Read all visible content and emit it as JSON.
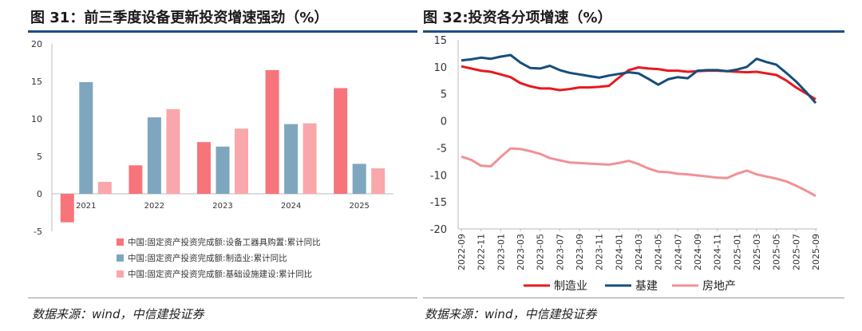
{
  "left": {
    "title": "图 31：前三季度设备更新投资增速强劲（%）",
    "source": "数据来源：wind，中信建投证券"
  },
  "right": {
    "title": "图 32:投资各分项增速（%）",
    "source": "数据来源：wind，中信建投证券"
  },
  "colors": {
    "accent": "#1c4f80",
    "bar1": "#f7747b",
    "bar2": "#7ea6bf",
    "bar3": "#f9a7ab",
    "line_mfg": "#e8191e",
    "line_infra": "#174e7a",
    "line_re": "#f19195"
  },
  "chart_data": [
    {
      "type": "bar",
      "categories": [
        "2021",
        "2022",
        "2023",
        "2024",
        "2025"
      ],
      "series": [
        {
          "name": "中国:固定资产投资完成额:设备工器具购置:累计同比",
          "values": [
            -3.8,
            3.8,
            6.9,
            16.5,
            14.1
          ]
        },
        {
          "name": "中国:固定资产投资完成额:制造业:累计同比",
          "values": [
            14.9,
            10.2,
            6.3,
            9.3,
            4.0
          ]
        },
        {
          "name": "中国:固定资产投资完成额:基础设施建设:累计同比",
          "values": [
            1.6,
            11.3,
            8.7,
            9.4,
            3.4
          ]
        }
      ],
      "ylim": [
        -5,
        20
      ],
      "yticks": [
        "-5",
        "0",
        "5",
        "10",
        "15",
        "20"
      ],
      "title": "图 31：前三季度设备更新投资增速强劲（%）"
    },
    {
      "type": "line",
      "x": [
        "2022-09",
        "2022-10",
        "2022-11",
        "2022-12",
        "2023-01",
        "2023-02",
        "2023-03",
        "2023-04",
        "2023-05",
        "2023-06",
        "2023-07",
        "2023-08",
        "2023-09",
        "2023-10",
        "2023-11",
        "2023-12",
        "2024-01",
        "2024-02",
        "2024-03",
        "2024-04",
        "2024-05",
        "2024-06",
        "2024-07",
        "2024-08",
        "2024-09",
        "2024-10",
        "2024-11",
        "2024-12",
        "2025-01",
        "2025-02",
        "2025-03",
        "2025-04",
        "2025-05",
        "2025-06",
        "2025-07",
        "2025-08",
        "2025-09"
      ],
      "xtick_labels": [
        "2022-09",
        "2022-11",
        "2023-01",
        "2023-03",
        "2023-05",
        "2023-07",
        "2023-09",
        "2023-11",
        "2024-01",
        "2024-03",
        "2024-05",
        "2024-07",
        "2024-09",
        "2024-11",
        "2025-01",
        "2025-03",
        "2025-05",
        "2025-07",
        "2025-09"
      ],
      "series": [
        {
          "name": "制造业",
          "values": [
            10.1,
            9.7,
            9.3,
            9.1,
            8.6,
            8.1,
            7.0,
            6.4,
            6.0,
            6.0,
            5.7,
            5.9,
            6.2,
            6.2,
            6.3,
            6.5,
            8.0,
            9.4,
            9.9,
            9.7,
            9.6,
            9.3,
            9.3,
            9.1,
            9.2,
            9.3,
            9.3,
            9.2,
            9.1,
            9.0,
            9.1,
            8.8,
            8.5,
            7.5,
            6.2,
            5.1,
            4.0
          ]
        },
        {
          "name": "基建",
          "values": [
            11.2,
            11.4,
            11.7,
            11.5,
            11.9,
            12.2,
            10.8,
            9.8,
            9.7,
            10.2,
            9.4,
            8.9,
            8.6,
            8.3,
            8.0,
            8.4,
            8.7,
            9.0,
            8.8,
            7.8,
            6.7,
            7.7,
            8.1,
            7.9,
            9.3,
            9.4,
            9.4,
            9.2,
            9.5,
            10.0,
            11.5,
            10.9,
            10.4,
            8.9,
            7.3,
            5.4,
            3.3
          ]
        },
        {
          "name": "房地产",
          "values": [
            -6.6,
            -7.2,
            -8.3,
            -8.4,
            -6.7,
            -5.1,
            -5.2,
            -5.6,
            -6.1,
            -6.9,
            -7.3,
            -7.7,
            -7.8,
            -7.9,
            -8.0,
            -8.1,
            -7.8,
            -7.4,
            -8.0,
            -8.8,
            -9.4,
            -9.5,
            -9.8,
            -9.9,
            -10.1,
            -10.3,
            -10.5,
            -10.6,
            -9.8,
            -9.2,
            -9.9,
            -10.3,
            -10.7,
            -11.2,
            -12.0,
            -12.9,
            -13.9
          ]
        }
      ],
      "ylim": [
        -20,
        15
      ],
      "yticks": [
        "-20",
        "-15",
        "-10",
        "-5",
        "0",
        "5",
        "10",
        "15"
      ],
      "title": "图 32:投资各分项增速（%）"
    }
  ]
}
